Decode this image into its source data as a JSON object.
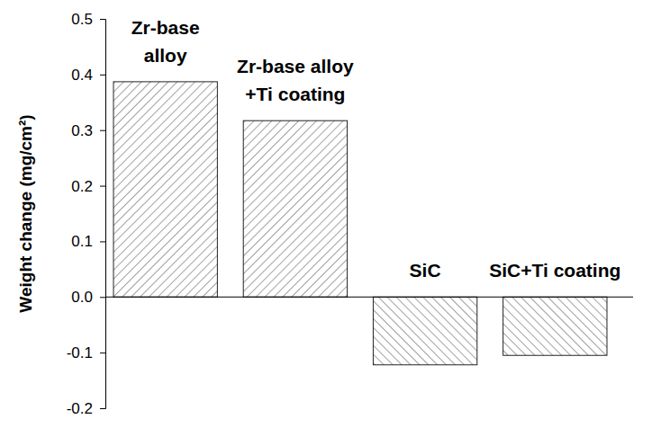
{
  "chart_data": {
    "type": "bar",
    "categories": [
      "Zr-base\nalloy",
      "Zr-base alloy\n+Ti coating",
      "SiC",
      "SiC+Ti coating"
    ],
    "values": [
      0.387,
      0.317,
      -0.122,
      -0.105
    ],
    "y_label": "Weight change (mg/cm²)",
    "ylim": [
      -0.2,
      0.5
    ],
    "yticks": [
      -0.2,
      -0.1,
      {
        "value": 0,
        "label": "0.0"
      },
      0.1,
      0.2,
      0.3,
      0.4,
      0.5
    ],
    "grid": false,
    "tick_labels": "y"
  }
}
